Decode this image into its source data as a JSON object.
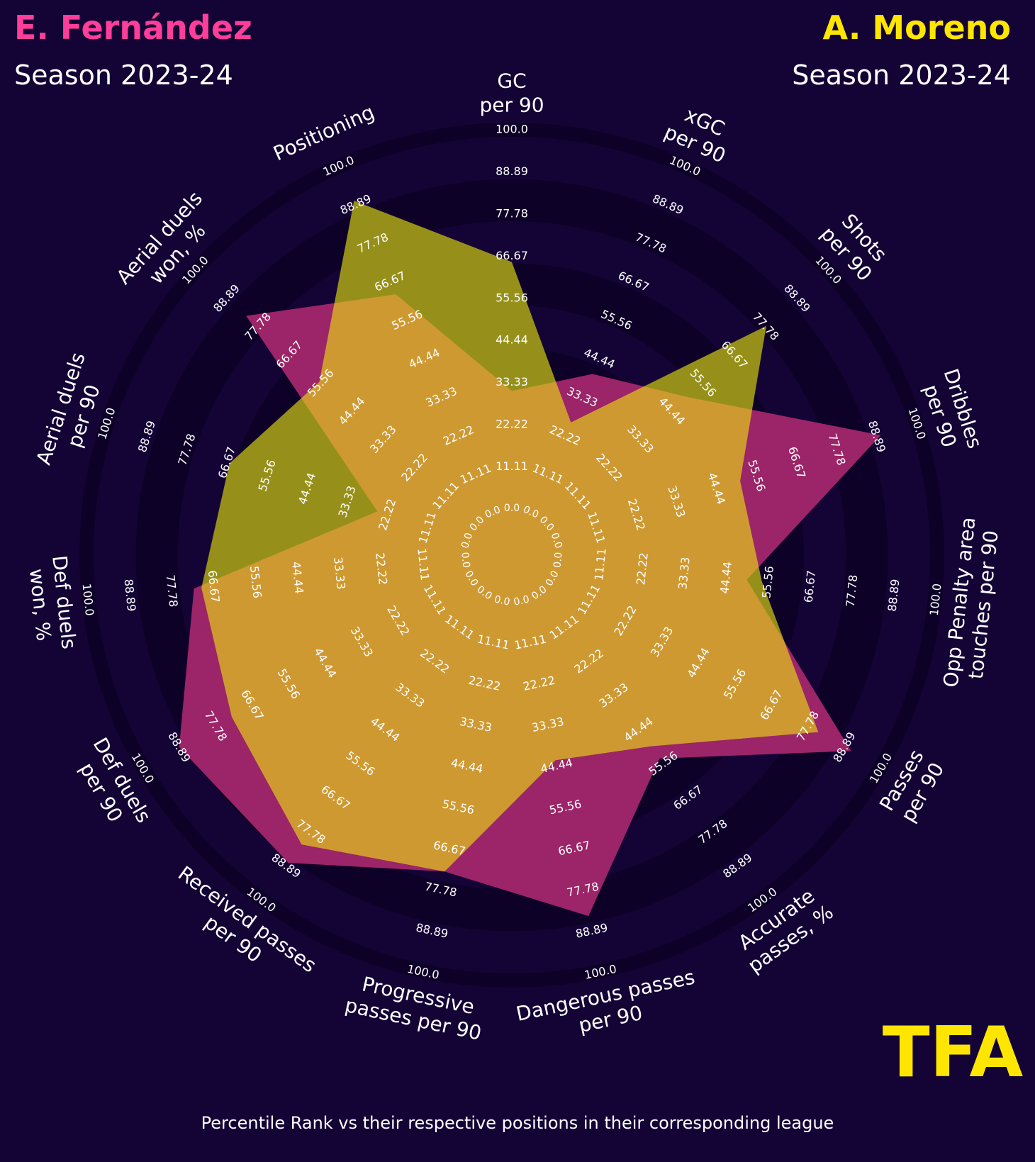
{
  "header": {
    "player1": {
      "name": "E. Fernández",
      "season": "Season 2023-24"
    },
    "player2": {
      "name": "A. Moreno",
      "season": "Season 2023-24"
    }
  },
  "footer": "Percentile Rank vs their respective positions in their corresponding league",
  "logo": "TFA",
  "colors": {
    "background": "#140436",
    "player1": "#ff3e9a",
    "player1_fill": "#9c2468",
    "player2": "#ffe600",
    "player2_fill": "#96901a",
    "overlap_fill": "#cf9932",
    "ring_dark": "#0e0128",
    "logo": "#ffe600"
  },
  "chart_data": {
    "type": "radar",
    "ring_values": [
      "0.0",
      "11.11",
      "22.22",
      "33.33",
      "44.44",
      "55.56",
      "66.67",
      "77.78",
      "88.89",
      "100.0"
    ],
    "axes": [
      {
        "label": [
          "GC",
          "per 90"
        ]
      },
      {
        "label": [
          "xGC",
          "per 90"
        ]
      },
      {
        "label": [
          "Shots",
          "per 90"
        ]
      },
      {
        "label": [
          "Dribbles",
          "per 90"
        ]
      },
      {
        "label": [
          "Opp Penalty area",
          "touches per 90"
        ]
      },
      {
        "label": [
          "Passes",
          "per 90"
        ]
      },
      {
        "label": [
          "Accurate",
          "passes, %"
        ]
      },
      {
        "label": [
          "Dangerous passes",
          "per 90"
        ]
      },
      {
        "label": [
          "Progressive",
          "passes per 90"
        ]
      },
      {
        "label": [
          "Received passes",
          "per 90"
        ]
      },
      {
        "label": [
          "Def duels",
          "per 90"
        ]
      },
      {
        "label": [
          "Def duels",
          "won, %"
        ]
      },
      {
        "label": [
          "Aerial duels",
          "per 90"
        ]
      },
      {
        "label": [
          "Aerial duels",
          "won, %"
        ]
      },
      {
        "label": [
          "Positioning"
        ]
      }
    ],
    "series": [
      {
        "name": "E. Fernández",
        "values": [
          33,
          42,
          52,
          92,
          52,
          93,
          56,
          87,
          75,
          90,
          91,
          74,
          27,
          84,
          65
        ]
      },
      {
        "name": "A. Moreno",
        "values": [
          67,
          28,
          80,
          53,
          56,
          83,
          52,
          45,
          75,
          84,
          75,
          72,
          68,
          58,
          92
        ]
      }
    ],
    "range": [
      0,
      100
    ]
  }
}
